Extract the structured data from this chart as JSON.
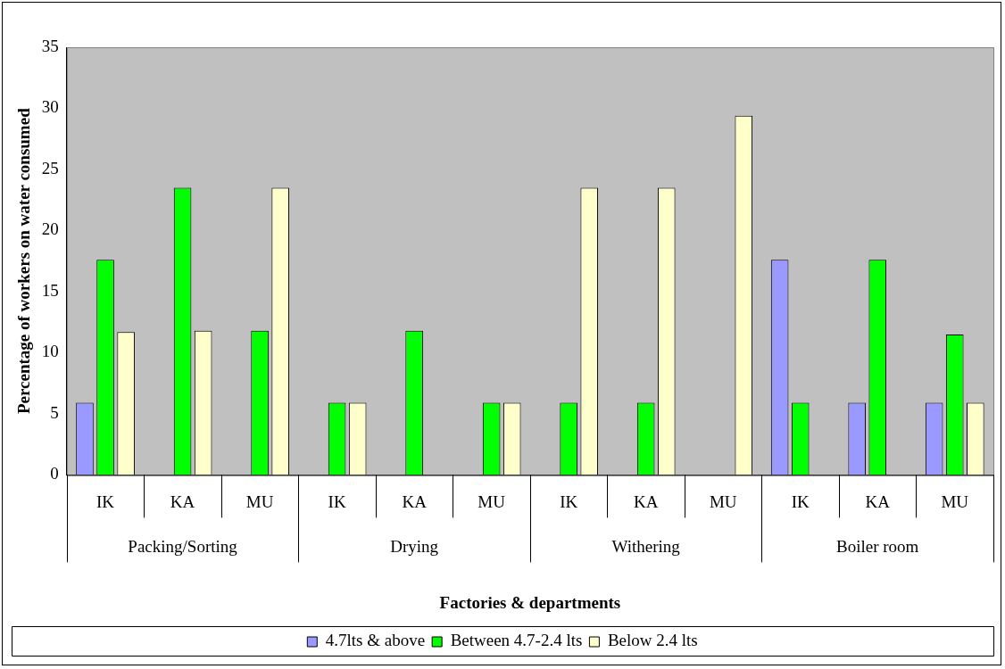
{
  "chart_data": {
    "type": "bar",
    "xlabel": "Factories & departments",
    "ylabel": "Percentage of workers on water consumed",
    "categories": [
      "IK",
      "KA",
      "MU",
      "IK",
      "KA",
      "MU",
      "IK",
      "KA",
      "MU",
      "IK",
      "KA",
      "MU"
    ],
    "annotations": [
      "Packing/Sorting",
      "Drying",
      "Withering",
      "Boiler room"
    ],
    "series": [
      {
        "name": "4.7lts & above",
        "color": "#9999ff",
        "values": [
          5.9,
          0,
          0,
          0,
          0,
          0,
          0,
          0,
          0,
          17.6,
          5.9,
          5.9
        ]
      },
      {
        "name": "Between 4.7-2.4 lts",
        "color": "#00ff00",
        "values": [
          17.6,
          23.5,
          11.8,
          5.9,
          11.8,
          5.9,
          5.9,
          5.9,
          0,
          5.9,
          17.6,
          11.5
        ]
      },
      {
        "name": "Below 2.4 lts",
        "color": "#ffffcc",
        "values": [
          11.7,
          11.8,
          23.5,
          5.9,
          0,
          5.9,
          23.5,
          23.5,
          29.4,
          0,
          0,
          5.9
        ]
      }
    ],
    "ylim": [
      0,
      35
    ],
    "yticks": [
      0,
      5,
      10,
      15,
      20,
      25,
      30,
      35
    ],
    "grid": false,
    "legend": "bottom"
  }
}
